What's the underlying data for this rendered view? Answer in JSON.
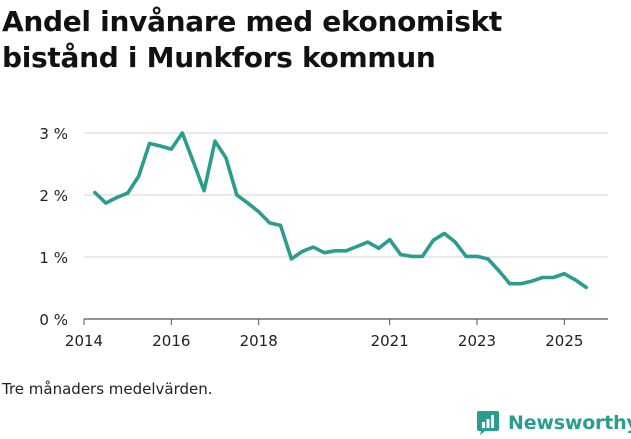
{
  "title": "Andel invånare med ekonomiskt bistånd i Munkfors kommun",
  "footnote": "Tre månaders medelvärden.",
  "brand": {
    "name": "Newsworthy",
    "icon": "bar-chart-icon",
    "color": "#2a9d8f"
  },
  "chart_data": {
    "type": "line",
    "title": "Andel invånare med ekonomiskt bistånd i Munkfors kommun",
    "xlabel": "",
    "ylabel": "",
    "x": [
      "2014-04",
      "2014-07",
      "2014-10",
      "2015-01",
      "2015-04",
      "2015-07",
      "2015-10",
      "2016-01",
      "2016-04",
      "2016-07",
      "2016-10",
      "2017-01",
      "2017-04",
      "2017-07",
      "2017-10",
      "2018-01",
      "2018-04",
      "2018-07",
      "2018-10",
      "2019-01",
      "2019-04",
      "2019-07",
      "2019-10",
      "2020-01",
      "2020-04",
      "2020-07",
      "2020-10",
      "2021-01",
      "2021-04",
      "2021-07",
      "2021-10",
      "2022-01",
      "2022-04",
      "2022-07",
      "2022-10",
      "2023-01",
      "2023-04",
      "2023-07",
      "2023-10",
      "2024-01",
      "2024-04",
      "2024-07",
      "2024-10",
      "2025-01",
      "2025-04",
      "2025-07"
    ],
    "series": [
      {
        "color": "#2a9d8f",
        "values": [
          2.04,
          1.87,
          1.96,
          2.03,
          2.3,
          2.83,
          2.79,
          2.74,
          3.0,
          2.54,
          2.07,
          2.87,
          2.6,
          2.0,
          1.87,
          1.73,
          1.55,
          1.51,
          0.97,
          1.09,
          1.16,
          1.07,
          1.1,
          1.1,
          1.17,
          1.24,
          1.14,
          1.28,
          1.04,
          1.01,
          1.01,
          1.27,
          1.38,
          1.24,
          1.01,
          1.01,
          0.97,
          0.78,
          0.57,
          0.57,
          0.61,
          0.67,
          0.67,
          0.73,
          0.63,
          0.51
        ]
      }
    ],
    "ylim": [
      0,
      3
    ],
    "yticks": [
      0,
      1,
      2,
      3
    ],
    "ytick_labels": [
      "0 %",
      "1 %",
      "2 %",
      "3 %"
    ],
    "xticks": [
      "2014",
      "2016",
      "2018",
      "2021",
      "2023",
      "2025"
    ],
    "grid": "horizontal",
    "legend": "none"
  }
}
